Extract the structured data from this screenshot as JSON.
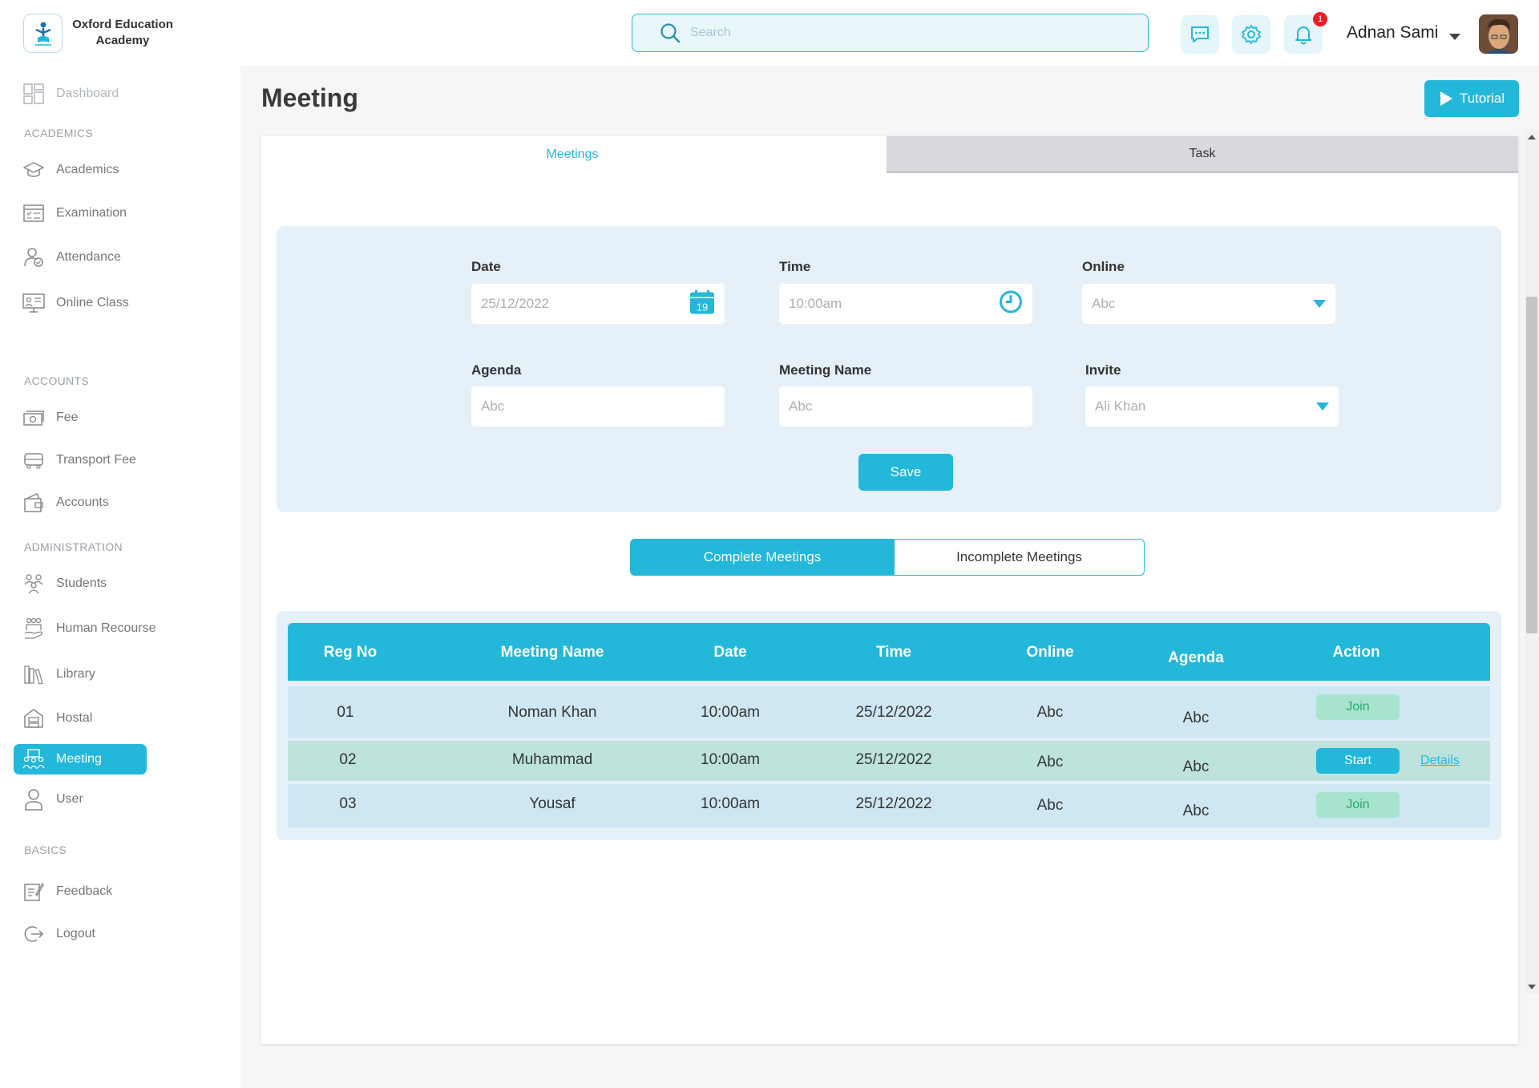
{
  "brand": {
    "name_line1": "Oxford Education",
    "name_line2": "Academy"
  },
  "search": {
    "placeholder": "Search",
    "value": ""
  },
  "header": {
    "notification_count": "1",
    "user_name": "Adnan Sami"
  },
  "sidebar": {
    "dashboard": "Dashboard",
    "sections": {
      "academics": "ACADEMICS",
      "accounts": "ACCOUNTS",
      "administration": "ADMINISTRATION",
      "basics": "BASICS"
    },
    "items": {
      "academics": "Academics",
      "examination": "Examination",
      "attendance": "Attendance",
      "online_class": "Online Class",
      "fee": "Fee",
      "transport_fee": "Transport Fee",
      "accounts": "Accounts",
      "students": "Students",
      "human_resource": "Human Recourse",
      "library": "Library",
      "hostal": "Hostal",
      "meeting": "Meeting",
      "user": "User",
      "feedback": "Feedback",
      "logout": "Logout"
    },
    "active": "meeting"
  },
  "page": {
    "title": "Meeting",
    "tutorial_label": "Tutorial"
  },
  "tabs": {
    "meetings": "Meetings",
    "task": "Task",
    "active": "meetings"
  },
  "form": {
    "date": {
      "label": "Date",
      "value": "25/12/2022",
      "calendar_day": "19"
    },
    "time": {
      "label": "Time",
      "value": "10:00am"
    },
    "online": {
      "label": "Online",
      "value": "Abc"
    },
    "agenda": {
      "label": "Agenda",
      "placeholder": "Abc"
    },
    "meeting_name": {
      "label": "Meeting Name",
      "placeholder": "Abc"
    },
    "invite": {
      "label": "Invite",
      "value": "Ali Khan"
    },
    "save_label": "Save"
  },
  "filters": {
    "complete": "Complete Meetings",
    "incomplete": "Incomplete Meetings",
    "active": "complete"
  },
  "table": {
    "headers": {
      "reg_no": "Reg No",
      "meeting_name": "Meeting Name",
      "date": "Date",
      "time": "Time",
      "online": "Online",
      "agenda": "Agenda",
      "action": "Action"
    },
    "rows": [
      {
        "reg_no": "01",
        "meeting_name": "Noman Khan",
        "date": "10:00am",
        "time": "25/12/2022",
        "online": "Abc",
        "agenda": "Abc",
        "action": "Join",
        "details": ""
      },
      {
        "reg_no": "02",
        "meeting_name": "Muhammad",
        "date": "10:00am",
        "time": "25/12/2022",
        "online": "Abc",
        "agenda": "Abc",
        "action": "Start",
        "details": "Details"
      },
      {
        "reg_no": "03",
        "meeting_name": "Yousaf",
        "date": "10:00am",
        "time": "25/12/2022",
        "online": "Abc",
        "agenda": "Abc",
        "action": "Join",
        "details": ""
      }
    ]
  },
  "colors": {
    "accent": "#23b7d9",
    "panel": "#e5f0f9",
    "join_bg": "#a8e3cf",
    "join_text": "#26a96c",
    "badge": "#ee1c25"
  },
  "icons": {
    "search": "search-icon",
    "chat": "chat-icon",
    "settings": "gear-icon",
    "notifications": "bell-icon",
    "calendar": "calendar-icon",
    "clock": "clock-icon",
    "play": "play-icon"
  }
}
